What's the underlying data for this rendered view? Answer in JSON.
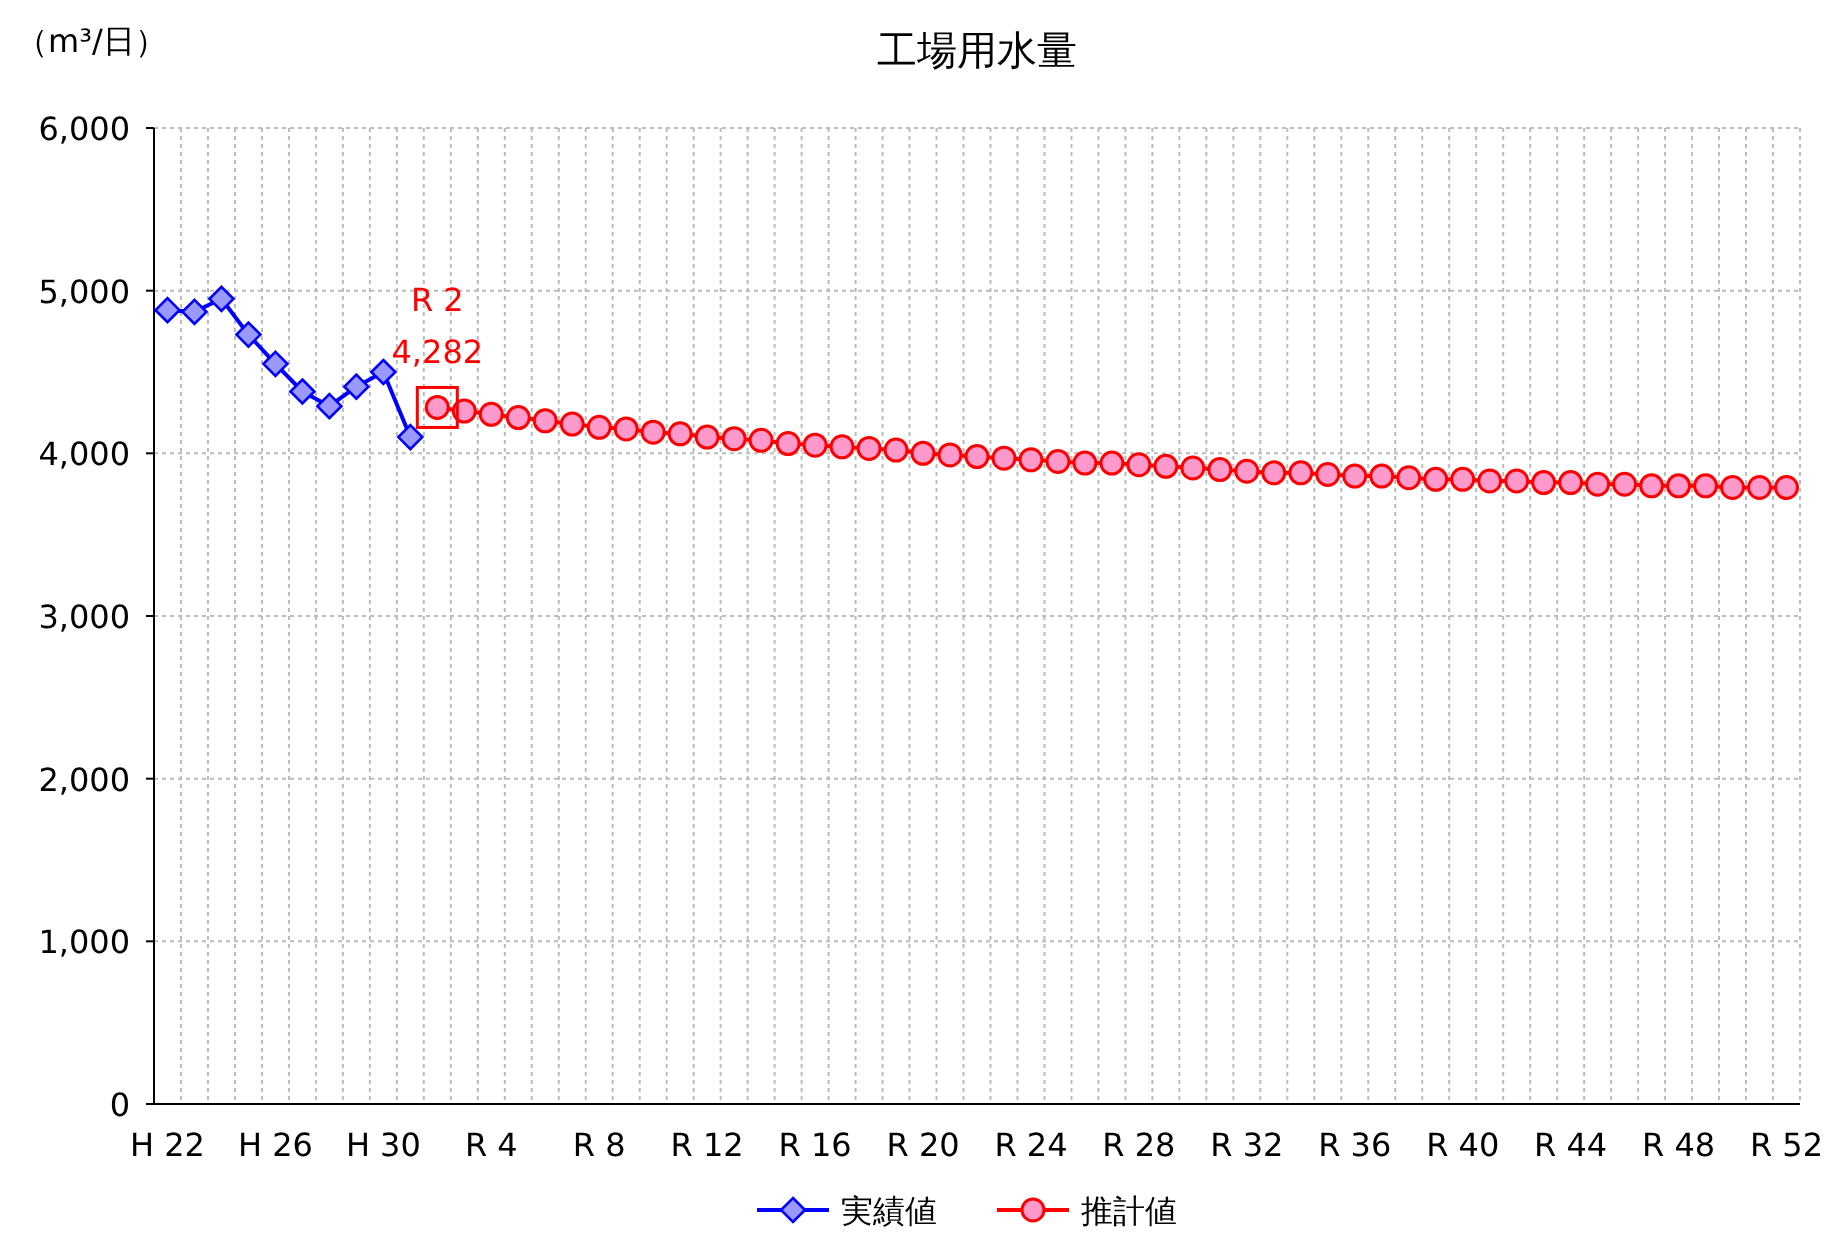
{
  "chart_data": {
    "type": "line",
    "title": "工場用水量",
    "ylabel": "（m³/日）",
    "categories": [
      "H 22",
      null,
      null,
      null,
      "H 26",
      null,
      null,
      null,
      "H 30",
      null,
      null,
      null,
      "R 4",
      null,
      null,
      null,
      "R 8",
      null,
      null,
      null,
      "R 12",
      null,
      null,
      null,
      "R 16",
      null,
      null,
      null,
      "R 20",
      null,
      null,
      null,
      "R 24",
      null,
      null,
      null,
      "R 28",
      null,
      null,
      null,
      "R 32",
      null,
      null,
      null,
      "R 36",
      null,
      null,
      null,
      "R 40",
      null,
      null,
      null,
      "R 44",
      null,
      null,
      null,
      "R 48",
      null,
      null,
      null,
      "R 52"
    ],
    "series": [
      {
        "name": "実績値",
        "color": "#0000ff",
        "marker": "diamond",
        "values": [
          4880,
          4870,
          4950,
          4730,
          4550,
          4380,
          4290,
          4410,
          4500,
          4100,
          null,
          null,
          null,
          null,
          null,
          null,
          null,
          null,
          null,
          null,
          null,
          null,
          null,
          null,
          null,
          null,
          null,
          null,
          null,
          null,
          null,
          null,
          null,
          null,
          null,
          null,
          null,
          null,
          null,
          null,
          null,
          null,
          null,
          null,
          null,
          null,
          null,
          null,
          null,
          null,
          null,
          null,
          null,
          null,
          null,
          null,
          null,
          null,
          null,
          null,
          null
        ]
      },
      {
        "name": "推計値",
        "color": "#ff0000",
        "marker": "circle",
        "values": [
          null,
          null,
          null,
          null,
          null,
          null,
          null,
          null,
          null,
          null,
          4282,
          4260,
          4240,
          4220,
          4200,
          4180,
          4160,
          4150,
          4130,
          4120,
          4100,
          4090,
          4080,
          4060,
          4050,
          4040,
          4030,
          4020,
          4000,
          3990,
          3980,
          3970,
          3960,
          3950,
          3940,
          3940,
          3930,
          3920,
          3910,
          3900,
          3890,
          3880,
          3880,
          3870,
          3860,
          3860,
          3850,
          3840,
          3840,
          3830,
          3830,
          3820,
          3820,
          3810,
          3810,
          3800,
          3800,
          3800,
          3790,
          3790,
          3790
        ],
        "value_labels": [
          null,
          null,
          null,
          null,
          null,
          null,
          null,
          null,
          null,
          null,
          "4,282",
          null,
          null,
          null,
          null,
          null,
          null,
          null,
          null,
          null,
          null,
          null,
          null,
          null,
          null,
          null,
          null,
          null,
          null,
          null,
          null,
          null,
          null,
          null,
          null,
          null,
          null,
          null,
          null,
          null,
          null,
          null,
          null,
          null,
          null,
          null,
          null,
          null,
          null,
          null,
          null,
          null,
          null,
          null,
          null,
          null,
          null,
          null,
          null,
          null,
          null
        ]
      }
    ],
    "annotations": [
      {
        "text": "R 2",
        "y": 4282
      }
    ],
    "ylim": [
      0,
      6000
    ],
    "yticks": [
      0,
      {
        "value": 1000,
        "label": "1,000"
      },
      {
        "value": 2000,
        "label": "2,000"
      },
      {
        "value": 3000,
        "label": "3,000"
      },
      {
        "value": 4000,
        "label": "4,000"
      },
      {
        "value": 5000,
        "label": "5,000"
      },
      {
        "value": 6000,
        "label": "6,000"
      }
    ],
    "grid": true,
    "legend": "bottom"
  }
}
